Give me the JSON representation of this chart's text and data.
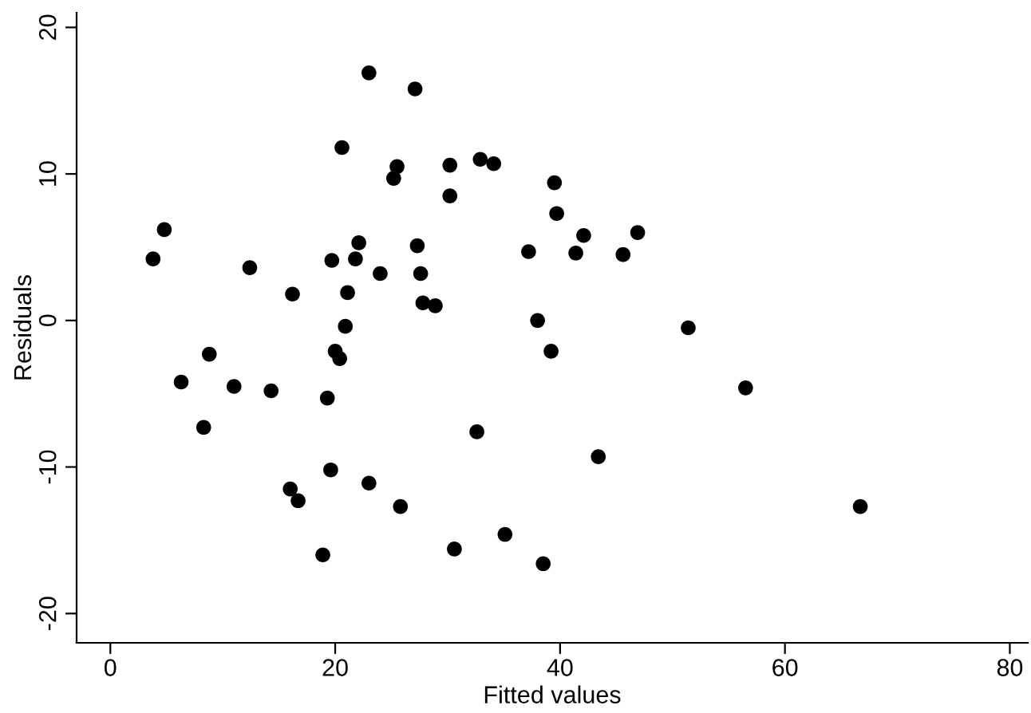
{
  "chart_data": {
    "type": "scatter",
    "xlabel": "Fitted values",
    "ylabel": "Residuals",
    "x": [
      3.8,
      4.8,
      6.3,
      8.3,
      8.8,
      11.0,
      12.4,
      14.3,
      16.0,
      16.2,
      16.7,
      18.9,
      19.3,
      19.6,
      19.7,
      20.0,
      20.4,
      20.6,
      20.9,
      21.1,
      21.8,
      22.1,
      23.0,
      23.0,
      24.0,
      25.2,
      25.5,
      25.8,
      27.1,
      27.3,
      27.6,
      27.8,
      28.9,
      30.2,
      30.2,
      30.6,
      32.6,
      32.9,
      34.1,
      35.1,
      37.2,
      38.0,
      38.5,
      39.2,
      39.5,
      39.7,
      41.4,
      42.1,
      43.4,
      45.6,
      46.9,
      51.4,
      56.5,
      66.7
    ],
    "values": [
      4.2,
      6.2,
      -4.2,
      -7.3,
      -2.3,
      -4.5,
      3.6,
      -4.8,
      -11.5,
      1.8,
      -12.3,
      -16.0,
      -5.3,
      -10.2,
      4.1,
      -2.1,
      -2.6,
      11.8,
      -0.4,
      1.9,
      4.2,
      5.3,
      16.9,
      -11.1,
      3.2,
      9.7,
      10.5,
      -12.7,
      15.8,
      5.1,
      3.2,
      1.2,
      1.0,
      10.6,
      8.5,
      -15.6,
      -7.6,
      11.0,
      10.7,
      -14.6,
      4.7,
      0.0,
      -16.6,
      -2.1,
      9.4,
      7.3,
      4.6,
      5.8,
      -9.3,
      4.5,
      6.0,
      -0.5,
      -4.6,
      -12.7
    ],
    "color": "#000000",
    "marker": "circle",
    "xlim": [
      -3,
      81.6
    ],
    "ylim": [
      -22,
      21
    ],
    "xticks": [
      0,
      20,
      40,
      60,
      80
    ],
    "yticks": [
      {
        "value": -20,
        "label": "-20"
      },
      {
        "value": -10,
        "label": "-10"
      },
      0,
      10,
      20
    ],
    "grid": false
  }
}
